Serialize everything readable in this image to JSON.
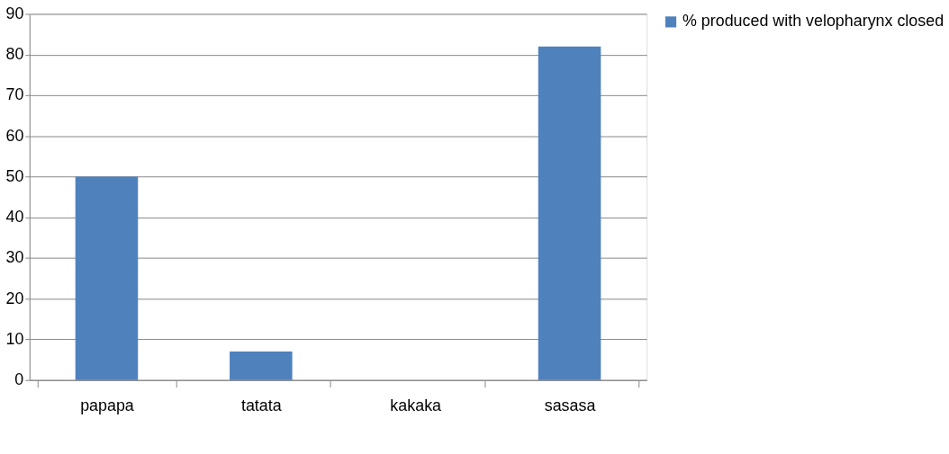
{
  "chart_data": {
    "type": "bar",
    "categories": [
      "papapa",
      "tatata",
      "kakaka",
      "sasasa"
    ],
    "series": [
      {
        "name": "% produced with velopharynx closed",
        "color": "#4f81bd",
        "values": [
          50,
          7,
          0,
          82
        ]
      }
    ],
    "ylim": [
      0,
      90
    ],
    "yticks": [
      0,
      10,
      20,
      30,
      40,
      50,
      60,
      70,
      80,
      90
    ],
    "grid": "y",
    "legend": "right"
  }
}
